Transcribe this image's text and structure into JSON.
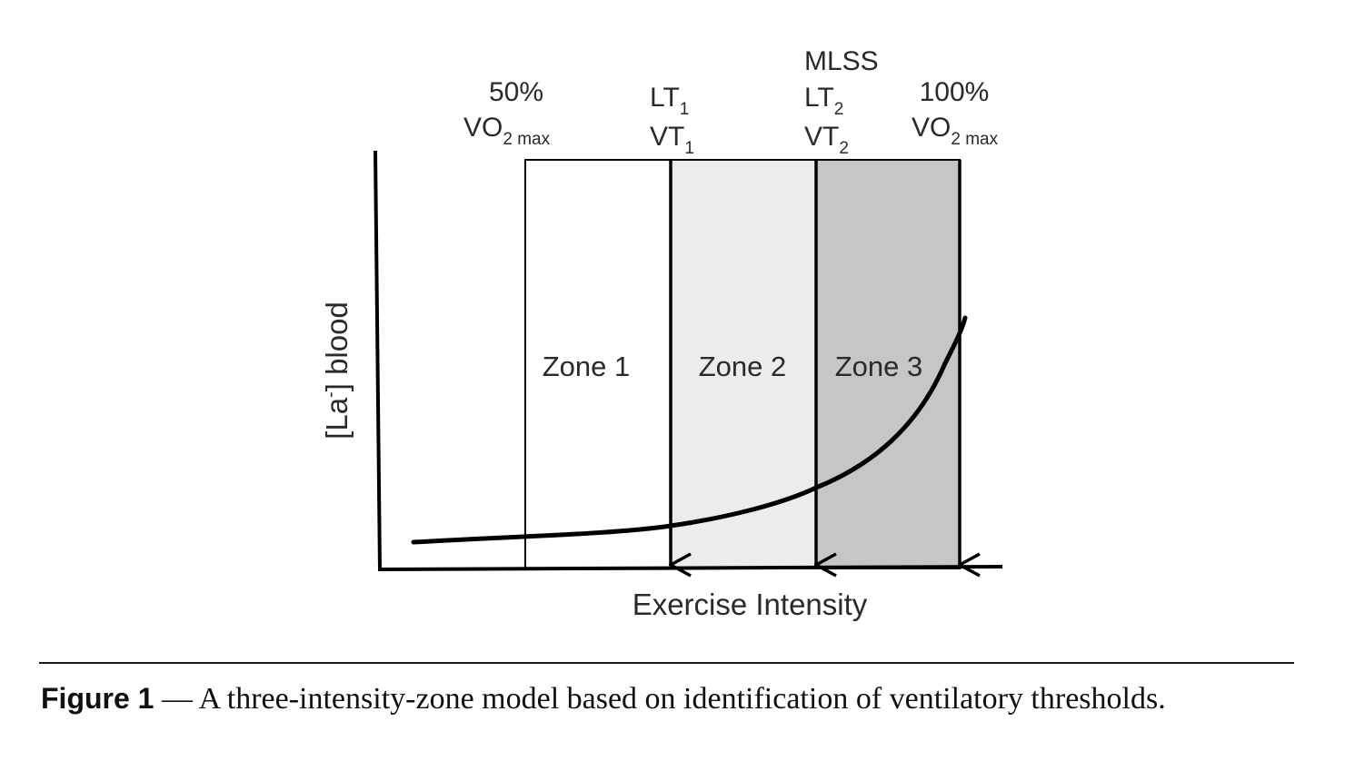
{
  "diagram": {
    "zones": [
      {
        "id": "zone1",
        "label": "Zone 1",
        "fill": "#ffffff"
      },
      {
        "id": "zone2",
        "label": "Zone 2",
        "fill": "#ececec"
      },
      {
        "id": "zone3",
        "label": "Zone 3",
        "fill": "#c6c6c6"
      }
    ],
    "markers": {
      "vo2_50": {
        "pct": "50%",
        "vo": "VO",
        "sub": "2 max"
      },
      "lt1": {
        "lt": "LT",
        "lt_sub": "1",
        "vt": "VT",
        "vt_sub": "1"
      },
      "lt2": {
        "mlss": "MLSS",
        "lt": "LT",
        "lt_sub": "2",
        "vt": "VT",
        "vt_sub": "2"
      },
      "vo2_100": {
        "pct": "100%",
        "vo": "VO",
        "sub": "2 max"
      }
    },
    "axes": {
      "x_label": "Exercise Intensity",
      "y_label_pre": "[La",
      "y_label_sup": "-",
      "y_label_post": "] blood"
    },
    "colors": {
      "line": "#000000",
      "text": "#2a2a2a"
    }
  },
  "caption": {
    "label": "Figure 1",
    "text": " — A three-intensity-zone model based on identification of ventilatory thresholds."
  }
}
